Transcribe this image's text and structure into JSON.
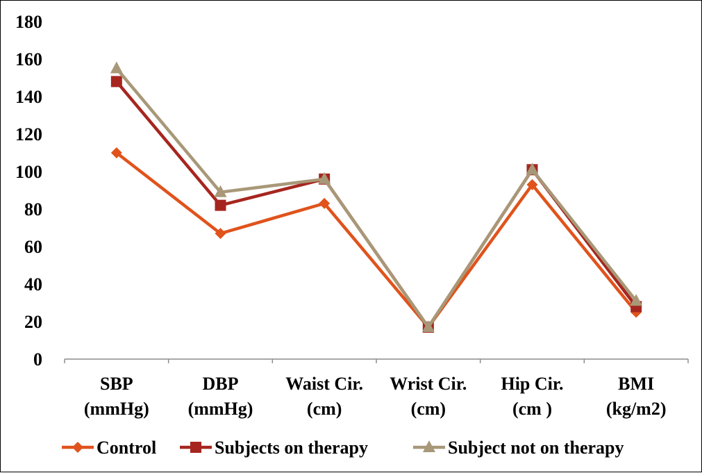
{
  "chart_data": {
    "type": "line",
    "title": "",
    "xlabel": "",
    "ylabel": "",
    "ylim": [
      0,
      180
    ],
    "yticks": [
      0,
      20,
      40,
      60,
      80,
      100,
      120,
      140,
      160,
      180
    ],
    "grid": false,
    "legend_position": "bottom",
    "categories": [
      [
        "SBP",
        "(mmHg)"
      ],
      [
        "DBP",
        "(mmHg)"
      ],
      [
        "Waist Cir.",
        "(cm)"
      ],
      [
        "Wrist Cir.",
        "(cm)"
      ],
      [
        "Hip Cir.",
        "(cm )"
      ],
      [
        "BMI",
        "(kg/m2)"
      ]
    ],
    "series": [
      {
        "name": "Control",
        "marker": "diamond",
        "color": "#E0531C",
        "values": [
          110,
          67,
          83,
          17,
          93,
          25
        ]
      },
      {
        "name": "Subjects on therapy",
        "marker": "square",
        "color": "#A6261F",
        "values": [
          148,
          82,
          96,
          17,
          101,
          28
        ]
      },
      {
        "name": "Subject not on therapy",
        "marker": "triangle",
        "color": "#A89878",
        "values": [
          155,
          89,
          96,
          17,
          101,
          31
        ]
      }
    ]
  }
}
